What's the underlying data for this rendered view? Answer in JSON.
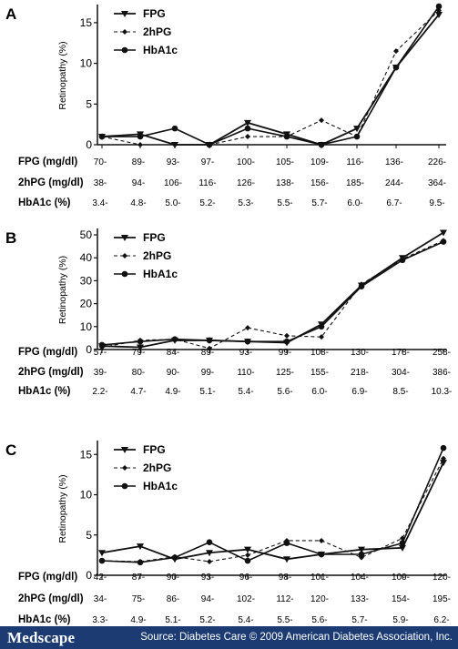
{
  "chart_data": [
    {
      "type": "line",
      "panel_label": "A",
      "ylabel": "Retinopathy (%)",
      "ylim": [
        0,
        17
      ],
      "yticks": [
        0,
        5,
        10,
        15
      ],
      "legend": [
        "FPG",
        "2hPG",
        "HbA1c"
      ],
      "legend_position": "top-left",
      "grid": false,
      "row_labels": [
        "FPG (mg/dl)",
        "2hPG (mg/dl)",
        "HbA1c (%)"
      ],
      "rows": [
        [
          "70-",
          "89-",
          "93-",
          "97-",
          "100-",
          "105-",
          "109-",
          "116-",
          "136-",
          "226-"
        ],
        [
          "38-",
          "94-",
          "106-",
          "116-",
          "126-",
          "138-",
          "156-",
          "185-",
          "244-",
          "364-"
        ],
        [
          "3.4-",
          "4.8-",
          "5.0-",
          "5.2-",
          "5.3-",
          "5.5-",
          "5.7-",
          "6.0-",
          "6.7-",
          "9.5-"
        ]
      ],
      "series": [
        {
          "name": "FPG",
          "values": [
            1.0,
            1.3,
            0.0,
            0.0,
            2.7,
            1.3,
            0.0,
            2.0,
            9.5,
            16.0
          ]
        },
        {
          "name": "2hPG",
          "values": [
            1.0,
            0.0,
            0.0,
            0.0,
            1.0,
            1.0,
            3.0,
            1.0,
            11.5,
            16.5
          ]
        },
        {
          "name": "HbA1c",
          "values": [
            1.0,
            1.0,
            2.0,
            0.0,
            2.0,
            1.0,
            0.0,
            1.0,
            9.5,
            17.0
          ]
        }
      ]
    },
    {
      "type": "line",
      "panel_label": "B",
      "ylabel": "Retinopathy (%)",
      "ylim": [
        0,
        52
      ],
      "yticks": [
        0,
        10,
        20,
        30,
        40,
        50
      ],
      "legend": [
        "FPG",
        "2hPG",
        "HbA1c"
      ],
      "legend_position": "top-left",
      "grid": false,
      "row_labels": [
        "FPG (mg/dl)",
        "2hPG (mg/dl)",
        "HbA1c (%)"
      ],
      "rows": [
        [
          "57-",
          "79-",
          "84-",
          "89-",
          "93-",
          "99-",
          "108-",
          "130-",
          "178-",
          "258-"
        ],
        [
          "39-",
          "80-",
          "90-",
          "99-",
          "110-",
          "125-",
          "155-",
          "218-",
          "304-",
          "386-"
        ],
        [
          "2.2-",
          "4.7-",
          "4.9-",
          "5.1-",
          "5.4-",
          "5.6-",
          "6.0-",
          "6.9-",
          "8.5-",
          "10.3-"
        ]
      ],
      "series": [
        {
          "name": "FPG",
          "values": [
            1.5,
            1.0,
            4.0,
            4.0,
            3.5,
            3.0,
            11.0,
            28.0,
            40.0,
            51.0
          ]
        },
        {
          "name": "2hPG",
          "values": [
            1.0,
            4.0,
            4.5,
            0.5,
            9.5,
            6.0,
            5.5,
            28.5,
            39.5,
            47.5
          ]
        },
        {
          "name": "HbA1c",
          "values": [
            2.0,
            3.5,
            4.5,
            4.0,
            3.5,
            3.5,
            10.0,
            27.5,
            39.0,
            47.0
          ]
        }
      ]
    },
    {
      "type": "line",
      "panel_label": "C",
      "ylabel": "Retinopathy (%)",
      "ylim": [
        0,
        16.5
      ],
      "yticks": [
        0,
        5,
        10,
        15
      ],
      "legend": [
        "FPG",
        "2hPG",
        "HbA1c"
      ],
      "legend_position": "top-left",
      "grid": false,
      "row_labels": [
        "FPG (mg/dl)",
        "2hPG (mg/dl)",
        "HbA1c (%)"
      ],
      "rows": [
        [
          "42-",
          "87-",
          "90-",
          "93-",
          "96-",
          "98-",
          "101-",
          "104-",
          "109-",
          "120-"
        ],
        [
          "34-",
          "75-",
          "86-",
          "94-",
          "102-",
          "112-",
          "120-",
          "133-",
          "154-",
          "195-"
        ],
        [
          "3.3-",
          "4.9-",
          "5.1-",
          "5.2-",
          "5.4-",
          "5.5-",
          "5.6-",
          "5.7-",
          "5.9-",
          "6.2-"
        ]
      ],
      "series": [
        {
          "name": "FPG",
          "values": [
            2.8,
            3.6,
            2.0,
            2.8,
            3.2,
            2.0,
            2.6,
            3.2,
            3.4,
            14.0
          ]
        },
        {
          "name": "2hPG",
          "values": [
            1.8,
            1.7,
            2.3,
            1.7,
            2.5,
            4.3,
            4.3,
            2.2,
            4.6,
            14.5
          ]
        },
        {
          "name": "HbA1c",
          "values": [
            1.8,
            1.6,
            2.2,
            4.1,
            1.8,
            4.0,
            2.6,
            2.6,
            4.0,
            15.8
          ]
        }
      ]
    }
  ],
  "footer": {
    "logo": "Medscape",
    "source": "Source: Diabetes Care © 2009 American Diabetes Association, Inc."
  }
}
